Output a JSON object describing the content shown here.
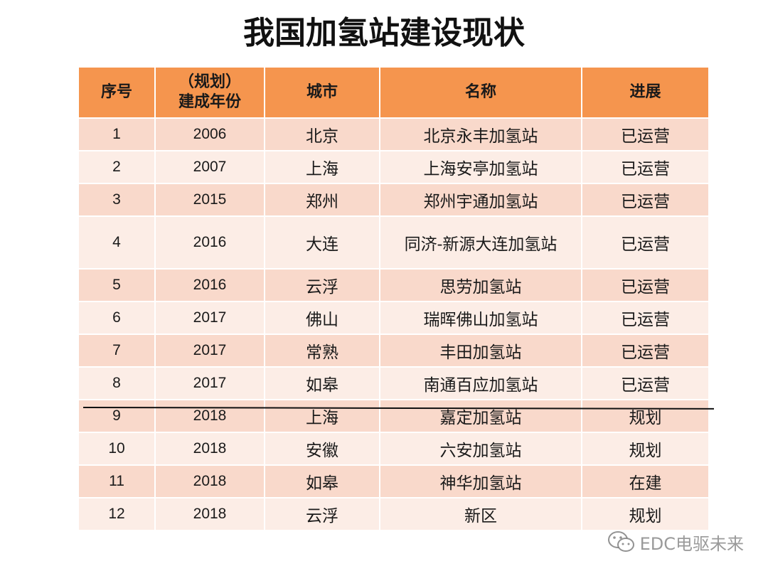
{
  "title": "我国加氢站建设现状",
  "table": {
    "headers": {
      "index": "序号",
      "year_line1": "（规划）",
      "year_line2": "建成年份",
      "city": "城市",
      "name": "名称",
      "status": "进展"
    },
    "rows": [
      {
        "index": "1",
        "year": "2006",
        "city": "北京",
        "name": "北京永丰加氢站",
        "status": "已运营"
      },
      {
        "index": "2",
        "year": "2007",
        "city": "上海",
        "name": "上海安亭加氢站",
        "status": "已运营"
      },
      {
        "index": "3",
        "year": "2015",
        "city": "郑州",
        "name": "郑州宇通加氢站",
        "status": "已运营"
      },
      {
        "index": "4",
        "year": "2016",
        "city": "大连",
        "name": "同济-新源大连加氢站",
        "status": "已运营"
      },
      {
        "index": "5",
        "year": "2016",
        "city": "云浮",
        "name": "思劳加氢站",
        "status": "已运营"
      },
      {
        "index": "6",
        "year": "2017",
        "city": "佛山",
        "name": "瑞晖佛山加氢站",
        "status": "已运营"
      },
      {
        "index": "7",
        "year": "2017",
        "city": "常熟",
        "name": "丰田加氢站",
        "status": "已运营"
      },
      {
        "index": "8",
        "year": "2017",
        "city": "如皋",
        "name": "南通百应加氢站",
        "status": "已运营"
      },
      {
        "index": "9",
        "year": "2018",
        "city": "上海",
        "name": "嘉定加氢站",
        "status": "规划"
      },
      {
        "index": "10",
        "year": "2018",
        "city": "安徽",
        "name": "六安加氢站",
        "status": "规划"
      },
      {
        "index": "11",
        "year": "2018",
        "city": "如皋",
        "name": "神华加氢站",
        "status": "在建"
      },
      {
        "index": "12",
        "year": "2018",
        "city": "云浮",
        "name": "新区",
        "status": "规划"
      }
    ]
  },
  "watermark": {
    "icon": "wechat-icon",
    "text": "EDC电驱未来"
  },
  "colors": {
    "header": "#f5954e",
    "row_odd": "#f9d9cb",
    "row_even": "#fcede6"
  }
}
